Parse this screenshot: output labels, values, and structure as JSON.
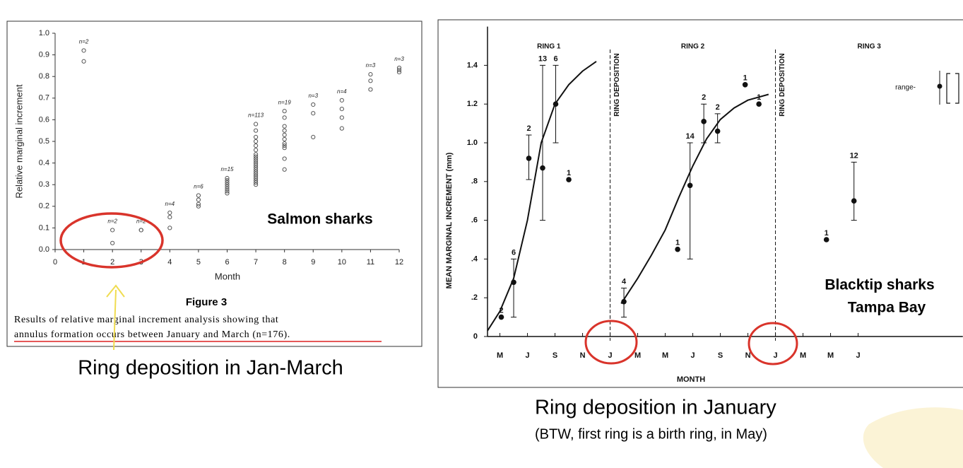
{
  "captions": {
    "left": "Ring deposition in Jan-March",
    "right": "Ring deposition in January",
    "right_note": "(BTW, first ring is a birth ring, in May)"
  },
  "chart_data": [
    {
      "type": "scatter",
      "y_label": "Relative marginal increment",
      "x_label": "Month",
      "label": "Salmon sharks",
      "figure": "Figure 3",
      "caption": [
        "Results of relative marginal increment analysis showing that",
        "annulus formation occurs between January and March (n=176)."
      ],
      "color": "#555555",
      "x": [
        1,
        1,
        2,
        2,
        3,
        3,
        4,
        4,
        4,
        5,
        5,
        5,
        5,
        6,
        6,
        6,
        6,
        6,
        6,
        6,
        6,
        7,
        7,
        7,
        7,
        7,
        7,
        7,
        7,
        7,
        7,
        7,
        7,
        7,
        7,
        7,
        7,
        7,
        7,
        7,
        7,
        7,
        8,
        8,
        8,
        8,
        8,
        8,
        8,
        8,
        8,
        8,
        8,
        9,
        9,
        9,
        10,
        10,
        10,
        10,
        11,
        11,
        11,
        12,
        12,
        12
      ],
      "values": [
        0.92,
        0.87,
        0.09,
        0.03,
        0.09,
        0.09,
        0.17,
        0.15,
        0.1,
        0.25,
        0.23,
        0.21,
        0.2,
        0.33,
        0.32,
        0.31,
        0.3,
        0.29,
        0.28,
        0.27,
        0.26,
        0.58,
        0.55,
        0.52,
        0.5,
        0.48,
        0.46,
        0.44,
        0.43,
        0.42,
        0.41,
        0.4,
        0.39,
        0.38,
        0.37,
        0.36,
        0.35,
        0.34,
        0.33,
        0.32,
        0.31,
        0.3,
        0.64,
        0.61,
        0.57,
        0.55,
        0.53,
        0.51,
        0.49,
        0.48,
        0.47,
        0.42,
        0.37,
        0.67,
        0.63,
        0.52,
        0.69,
        0.65,
        0.61,
        0.56,
        0.81,
        0.78,
        0.74,
        0.84,
        0.83,
        0.82
      ],
      "xlim": [
        0,
        12
      ],
      "ylim": [
        0,
        1.0
      ],
      "xticks": [
        0,
        1,
        2,
        3,
        4,
        5,
        6,
        7,
        8,
        9,
        10,
        11,
        12
      ],
      "yticks": [
        {
          "value": 0,
          "label": "0.0"
        },
        0.1,
        0.2,
        0.3,
        0.4,
        0.5,
        0.6,
        0.7,
        0.8,
        0.9,
        {
          "value": 1,
          "label": "1.0"
        }
      ],
      "n_labels": {
        "months": [
          1,
          2,
          3,
          4,
          5,
          6,
          7,
          8,
          9,
          10,
          11,
          12
        ],
        "texts": [
          "n=2",
          "n=2",
          "n=2",
          "n=4",
          "n=6",
          "n=15",
          "n=113",
          "n=19",
          "n=3",
          "n=4",
          "n=3",
          "n=3"
        ]
      }
    },
    {
      "type": "errorbar",
      "y_label": "MEAN MARGINAL INCREMENT (mm)",
      "x_label": "MONTH",
      "label": [
        "Blacktip sharks",
        "Tampa Bay"
      ],
      "ring_labels": [
        "RING 1",
        "RING 2",
        "RING 3"
      ],
      "deposition_x": [
        8,
        20
      ],
      "deposition_label": "RING DEPOSITION",
      "range_label": "range-",
      "color": "#111111",
      "x": [
        0.1,
        1.0,
        2.1,
        3.1,
        4.05,
        5.0,
        9.0,
        12.9,
        13.8,
        14.8,
        15.8,
        17.8,
        18.8,
        23.7,
        25.7
      ],
      "values": [
        0.1,
        0.28,
        0.92,
        0.87,
        1.2,
        0.81,
        0.18,
        0.45,
        0.78,
        1.11,
        1.06,
        1.3,
        1.2,
        0.5,
        0.7
      ],
      "err_low": [
        null,
        0.1,
        0.81,
        0.6,
        1.0,
        null,
        0.1,
        null,
        0.4,
        1.0,
        1.0,
        null,
        null,
        null,
        0.6
      ],
      "err_high": [
        null,
        0.4,
        1.04,
        1.4,
        1.4,
        null,
        0.25,
        null,
        1.0,
        1.2,
        1.15,
        null,
        null,
        null,
        0.9
      ],
      "n": [
        2,
        6,
        2,
        13,
        6,
        1,
        4,
        1,
        14,
        2,
        2,
        1,
        1,
        1,
        12
      ],
      "fits": [
        {
          "x": [
            -0.9,
            0,
            1,
            2,
            3,
            4,
            5,
            6,
            7
          ],
          "values": [
            0.03,
            0.13,
            0.3,
            0.6,
            1.0,
            1.2,
            1.3,
            1.37,
            1.42
          ]
        },
        {
          "x": [
            8.8,
            10,
            11,
            12,
            13,
            14,
            15,
            16,
            17,
            18,
            19.5
          ],
          "values": [
            0.17,
            0.3,
            0.42,
            0.55,
            0.72,
            0.88,
            1.02,
            1.12,
            1.18,
            1.22,
            1.25
          ]
        }
      ],
      "xlim": [
        -0.9,
        33.6
      ],
      "ylim": [
        0,
        1.6
      ],
      "xticks": [
        {
          "value": 0,
          "label": "M"
        },
        {
          "value": 2,
          "label": "J"
        },
        {
          "value": 4,
          "label": "S"
        },
        {
          "value": 6,
          "label": "N"
        },
        {
          "value": 8,
          "label": "J"
        },
        {
          "value": 10,
          "label": "M"
        },
        {
          "value": 12,
          "label": "M"
        },
        {
          "value": 14,
          "label": "J"
        },
        {
          "value": 16,
          "label": "S"
        },
        {
          "value": 18,
          "label": "N"
        },
        {
          "value": 20,
          "label": "J"
        },
        {
          "value": 22,
          "label": "M"
        },
        {
          "value": 24,
          "label": "M"
        },
        {
          "value": 26,
          "label": "J"
        }
      ],
      "yticks": [
        0,
        {
          "value": 0.2,
          "label": ".2"
        },
        {
          "value": 0.4,
          "label": ".4"
        },
        {
          "value": 0.6,
          "label": ".6"
        },
        {
          "value": 0.8,
          "label": ".8"
        },
        {
          "value": 1.0,
          "label": "1.0"
        },
        {
          "value": 1.2,
          "label": "1.2"
        },
        {
          "value": 1.4,
          "label": "1.4"
        }
      ]
    }
  ]
}
